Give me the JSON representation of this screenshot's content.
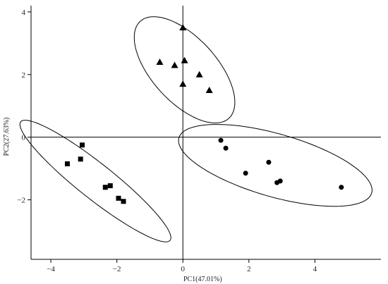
{
  "chart_data": {
    "type": "scatter",
    "title": "",
    "xlabel": "PC1(47.01%)",
    "ylabel": "PC2(27.63%)",
    "xlim": [
      -4.6,
      6.0
    ],
    "ylim": [
      -3.9,
      4.2
    ],
    "xticks": [
      -4,
      -2,
      0,
      2,
      4
    ],
    "yticks": [
      -2,
      0,
      2,
      4
    ],
    "reference_lines": {
      "x": 0,
      "y": 0
    },
    "grid": false,
    "legend": "none",
    "colors": {
      "points": "#000000",
      "ellipse": "#000000",
      "axis": "#000000",
      "background": "#ffffff"
    },
    "series": [
      {
        "marker": "triangle",
        "points": [
          {
            "x": 0.0,
            "y": 3.5
          },
          {
            "x": -0.7,
            "y": 2.4
          },
          {
            "x": -0.25,
            "y": 2.3
          },
          {
            "x": 0.05,
            "y": 2.45
          },
          {
            "x": 0.5,
            "y": 2.0
          },
          {
            "x": 0.8,
            "y": 1.5
          },
          {
            "x": 0.0,
            "y": 1.7
          }
        ],
        "ellipse": {
          "cx": 0.05,
          "cy": 2.15,
          "rx": 1.0,
          "ry": 2.05,
          "angle": 40
        }
      },
      {
        "marker": "circle",
        "points": [
          {
            "x": 1.15,
            "y": -0.1
          },
          {
            "x": 1.3,
            "y": -0.35
          },
          {
            "x": 1.9,
            "y": -1.15
          },
          {
            "x": 2.6,
            "y": -0.8
          },
          {
            "x": 2.85,
            "y": -1.45
          },
          {
            "x": 2.95,
            "y": -1.4
          },
          {
            "x": 4.8,
            "y": -1.6
          }
        ],
        "ellipse": {
          "cx": 2.8,
          "cy": -0.9,
          "rx": 3.05,
          "ry": 1.0,
          "angle": -17
        }
      },
      {
        "marker": "square",
        "points": [
          {
            "x": -3.5,
            "y": -0.85
          },
          {
            "x": -3.05,
            "y": -0.25
          },
          {
            "x": -3.1,
            "y": -0.7
          },
          {
            "x": -2.35,
            "y": -1.6
          },
          {
            "x": -2.2,
            "y": -1.55
          },
          {
            "x": -1.95,
            "y": -1.95
          },
          {
            "x": -1.8,
            "y": -2.05
          }
        ],
        "ellipse": {
          "cx": -2.65,
          "cy": -1.4,
          "rx": 2.95,
          "ry": 0.55,
          "angle": -40
        }
      }
    ]
  }
}
